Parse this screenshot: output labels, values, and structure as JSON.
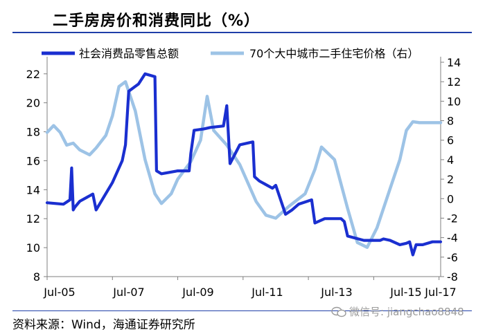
{
  "title": "二手房房价和消费同比（%）",
  "source": "资料来源：Wind，海通证券研究所",
  "watermark": "微信号: jiangchao8848",
  "chart_data": {
    "type": "line",
    "title": "二手房房价和消费同比（%）",
    "categories": [
      "Jul-05",
      "Jul-07",
      "Jul-09",
      "Jul-11",
      "Jul-13",
      "Jul-15",
      "Jul-17"
    ],
    "y_left": {
      "ticks": [
        8,
        10,
        12,
        14,
        16,
        18,
        20,
        22
      ],
      "lim": [
        8,
        22.8
      ]
    },
    "y_right": {
      "ticks": [
        -8,
        -6,
        -4,
        -2,
        0,
        2,
        4,
        6,
        8,
        10,
        12,
        14
      ],
      "lim": [
        -8,
        14
      ]
    },
    "legend_position": "top",
    "grid": false,
    "series": [
      {
        "name": "社会消费品零售总额",
        "axis": "left",
        "color": "#1a2fd0",
        "x": [
          2005.5,
          2006.0,
          2006.2,
          2006.25,
          2006.3,
          2006.35,
          2006.5,
          2006.9,
          2007.0,
          2007.5,
          2007.8,
          2007.9,
          2008.0,
          2008.3,
          2008.5,
          2008.8,
          2008.85,
          2009.0,
          2009.5,
          2009.85,
          2009.9,
          2010.0,
          2010.3,
          2010.5,
          2010.9,
          2011.0,
          2011.1,
          2011.4,
          2011.8,
          2011.85,
          2012.0,
          2012.4,
          2012.5,
          2012.8,
          2013.0,
          2013.2,
          2013.6,
          2013.7,
          2014.0,
          2014.5,
          2014.6,
          2014.7,
          2015.2,
          2015.7,
          2015.8,
          2016.0,
          2016.3,
          2016.5,
          2016.6,
          2016.7,
          2016.8,
          2017.0,
          2017.3,
          2017.55
        ],
        "values": [
          13.1,
          13.0,
          13.3,
          15.5,
          12.6,
          12.8,
          13.2,
          13.7,
          12.6,
          14.5,
          16.0,
          17.1,
          20.8,
          21.3,
          22.0,
          21.8,
          15.3,
          15.1,
          15.3,
          15.3,
          16.5,
          18.1,
          18.2,
          18.3,
          18.4,
          19.8,
          15.8,
          17.1,
          17.3,
          14.9,
          14.6,
          14.1,
          14.3,
          12.3,
          12.6,
          13.0,
          13.3,
          11.7,
          12.0,
          12.0,
          11.8,
          10.8,
          10.5,
          10.5,
          10.6,
          10.5,
          10.2,
          10.3,
          10.4,
          9.5,
          10.2,
          10.2,
          10.4,
          10.4
        ]
      },
      {
        "name": "70个大中城市二手住宅价格（右）",
        "axis": "right",
        "color": "#9dc3e6",
        "x": [
          2005.5,
          2005.7,
          2005.9,
          2006.1,
          2006.3,
          2006.5,
          2006.8,
          2007.0,
          2007.3,
          2007.5,
          2007.7,
          2007.9,
          2008.2,
          2008.5,
          2008.8,
          2009.0,
          2009.3,
          2009.5,
          2009.9,
          2010.2,
          2010.4,
          2010.6,
          2011.0,
          2011.4,
          2011.9,
          2012.2,
          2012.5,
          2012.9,
          2013.4,
          2013.7,
          2013.9,
          2014.3,
          2014.7,
          2015.0,
          2015.3,
          2015.6,
          2016.0,
          2016.3,
          2016.5,
          2016.7,
          2016.9,
          2017.2,
          2017.55
        ],
        "values": [
          6.8,
          7.5,
          6.8,
          5.5,
          5.7,
          5.0,
          4.5,
          5.2,
          6.5,
          8.5,
          11.5,
          12.0,
          9.0,
          4.0,
          0.5,
          -0.5,
          0.5,
          2.0,
          3.8,
          6.0,
          10.5,
          7.0,
          5.5,
          3.5,
          -0.3,
          -1.7,
          -2.0,
          -0.8,
          0.5,
          3.0,
          5.3,
          4.0,
          -1.0,
          -4.5,
          -5.0,
          -3.0,
          1.0,
          4.0,
          7.0,
          7.9,
          7.8,
          7.8,
          7.8
        ]
      }
    ]
  }
}
